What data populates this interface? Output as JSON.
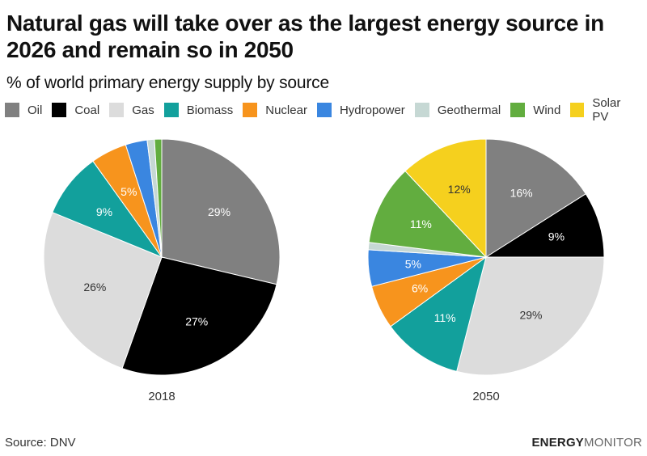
{
  "header": {
    "title": "Natural gas will take over as the largest energy source in 2026 and remain so in 2050",
    "subtitle": "% of world primary energy supply by source"
  },
  "footer": {
    "source": "Source: DNV",
    "brand_bold": "ENERGY",
    "brand_light": "MONITOR"
  },
  "chart_data": {
    "type": "pie",
    "title": "Natural gas will take over as the largest energy source in 2026 and remain so in 2050",
    "subtitle": "% of world primary energy supply by source",
    "legend_position": "top-left",
    "categories": [
      "Oil",
      "Coal",
      "Gas",
      "Biomass",
      "Nuclear",
      "Hydropower",
      "Geothermal",
      "Wind",
      "Solar PV"
    ],
    "colors": [
      "#808080",
      "#000000",
      "#dcdcdc",
      "#12a09c",
      "#f7941d",
      "#3a86e0",
      "#c6d8d4",
      "#62ad3f",
      "#f5d01e"
    ],
    "label_colors": [
      "#ffffff",
      "#ffffff",
      "#333333",
      "#ffffff",
      "#ffffff",
      "#ffffff",
      "#333333",
      "#ffffff",
      "#333333"
    ],
    "series": [
      {
        "name": "2018",
        "values": [
          29,
          27,
          26,
          9,
          5,
          3,
          1,
          1,
          0
        ],
        "labels": [
          "29%",
          "27%",
          "26%",
          "9%",
          "5%",
          "",
          "",
          "",
          ""
        ]
      },
      {
        "name": "2050",
        "values": [
          16,
          9,
          29,
          11,
          6,
          5,
          1,
          11,
          12
        ],
        "labels": [
          "16%",
          "9%",
          "29%",
          "11%",
          "6%",
          "5%",
          "",
          "11%",
          "12%"
        ]
      }
    ]
  }
}
